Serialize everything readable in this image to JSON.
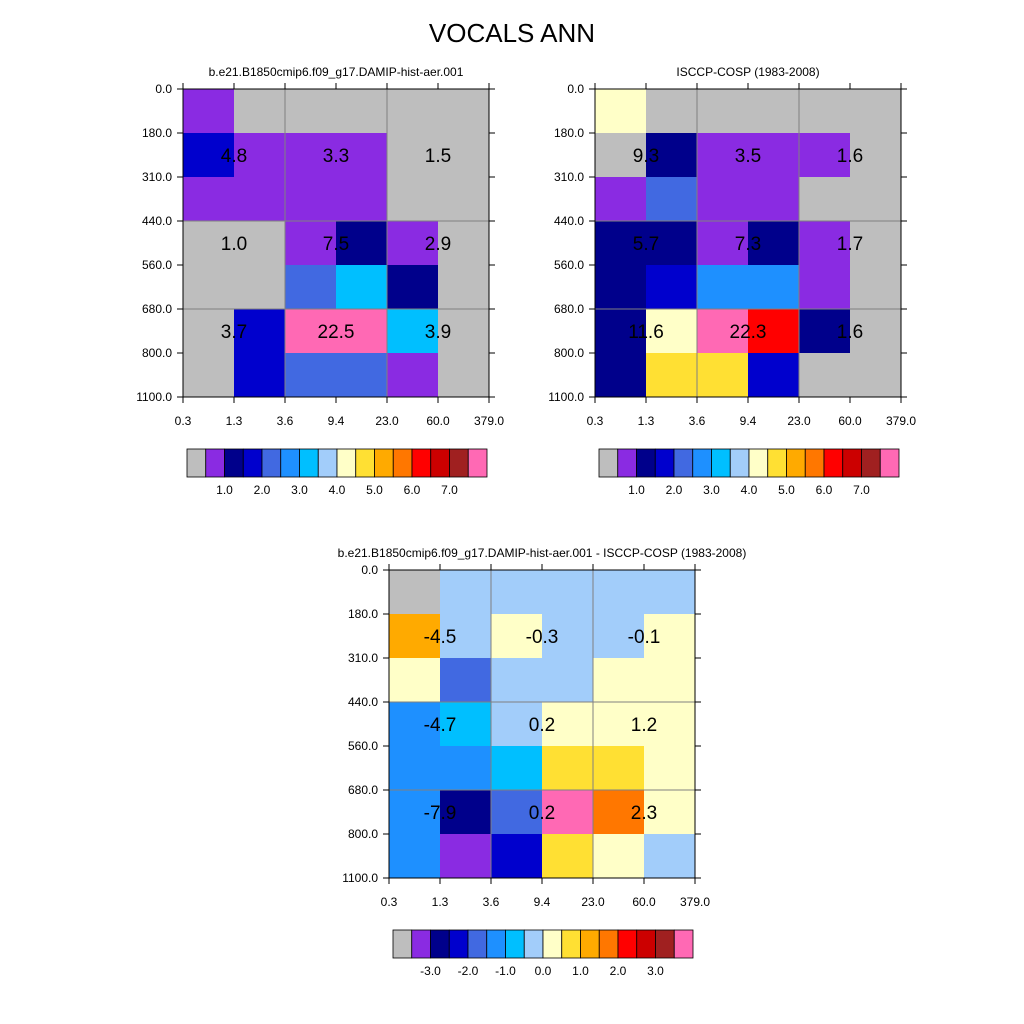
{
  "title": "VOCALS ANN",
  "colors": {
    "missing": "#BEBEBE",
    "grid": "#808080",
    "frame": "#000000"
  },
  "chart_data": [
    {
      "id": "model",
      "type": "heatmap",
      "subtitle": "b.e21.B1850cmip6.f09_g17.DAMIP-hist-aer.001",
      "x_ticks": [
        "0.3",
        "1.3",
        "3.6",
        "9.4",
        "23.0",
        "60.0",
        "379.0"
      ],
      "y_ticks": [
        "0.0",
        "180.0",
        "310.0",
        "440.0",
        "560.0",
        "680.0",
        "800.0",
        "1100.0"
      ],
      "cell_colors": [
        [
          "#8A2BE2",
          "#BEBEBE",
          "#BEBEBE",
          "#BEBEBE",
          "#BEBEBE",
          "#BEBEBE"
        ],
        [
          "#0000CD",
          "#8A2BE2",
          "#8A2BE2",
          "#8A2BE2",
          "#BEBEBE",
          "#BEBEBE"
        ],
        [
          "#8A2BE2",
          "#8A2BE2",
          "#8A2BE2",
          "#8A2BE2",
          "#BEBEBE",
          "#BEBEBE"
        ],
        [
          "#BEBEBE",
          "#BEBEBE",
          "#8A2BE2",
          "#00008B",
          "#8A2BE2",
          "#BEBEBE"
        ],
        [
          "#BEBEBE",
          "#BEBEBE",
          "#4169E1",
          "#00BFFF",
          "#00008B",
          "#BEBEBE"
        ],
        [
          "#BEBEBE",
          "#0000CD",
          "#FF69B4",
          "#FF69B4",
          "#00BFFF",
          "#BEBEBE"
        ],
        [
          "#BEBEBE",
          "#0000CD",
          "#4169E1",
          "#4169E1",
          "#8A2BE2",
          "#BEBEBE"
        ]
      ],
      "block_values": [
        [
          "4.8",
          "3.3",
          "1.5"
        ],
        [
          "1.0",
          "7.5",
          "2.9"
        ],
        [
          "3.7",
          "22.5",
          "3.9"
        ]
      ],
      "colorbar": {
        "colors": [
          "#BEBEBE",
          "#8A2BE2",
          "#00008B",
          "#0000CD",
          "#4169E1",
          "#1E90FF",
          "#00BFFF",
          "#A2CDFA",
          "#FFFFC8",
          "#FFE033",
          "#FFAA00",
          "#FF7700",
          "#FF0000",
          "#CC0000",
          "#A02020",
          "#FF69B4"
        ],
        "labels": [
          "1.0",
          "2.0",
          "3.0",
          "4.0",
          "5.0",
          "6.0",
          "7.0"
        ]
      }
    },
    {
      "id": "obs",
      "type": "heatmap",
      "subtitle": "ISCCP-COSP (1983-2008)",
      "x_ticks": [
        "0.3",
        "1.3",
        "3.6",
        "9.4",
        "23.0",
        "60.0",
        "379.0"
      ],
      "y_ticks": [
        "0.0",
        "180.0",
        "310.0",
        "440.0",
        "560.0",
        "680.0",
        "800.0",
        "1100.0"
      ],
      "cell_colors": [
        [
          "#FFFFC8",
          "#BEBEBE",
          "#BEBEBE",
          "#BEBEBE",
          "#BEBEBE",
          "#BEBEBE"
        ],
        [
          "#BEBEBE",
          "#00008B",
          "#8A2BE2",
          "#8A2BE2",
          "#8A2BE2",
          "#BEBEBE"
        ],
        [
          "#8A2BE2",
          "#4169E1",
          "#8A2BE2",
          "#8A2BE2",
          "#BEBEBE",
          "#BEBEBE"
        ],
        [
          "#00008B",
          "#00008B",
          "#8A2BE2",
          "#00008B",
          "#8A2BE2",
          "#BEBEBE"
        ],
        [
          "#00008B",
          "#0000CD",
          "#1E90FF",
          "#1E90FF",
          "#8A2BE2",
          "#BEBEBE"
        ],
        [
          "#00008B",
          "#FFFFC8",
          "#FF69B4",
          "#FF0000",
          "#00008B",
          "#BEBEBE"
        ],
        [
          "#00008B",
          "#FFE033",
          "#FFE033",
          "#0000CD",
          "#BEBEBE",
          "#BEBEBE"
        ]
      ],
      "block_values": [
        [
          "9.3",
          "3.5",
          "1.6"
        ],
        [
          "5.7",
          "7.3",
          "1.7"
        ],
        [
          "11.6",
          "22.3",
          "1.6"
        ]
      ],
      "colorbar": {
        "colors": [
          "#BEBEBE",
          "#8A2BE2",
          "#00008B",
          "#0000CD",
          "#4169E1",
          "#1E90FF",
          "#00BFFF",
          "#A2CDFA",
          "#FFFFC8",
          "#FFE033",
          "#FFAA00",
          "#FF7700",
          "#FF0000",
          "#CC0000",
          "#A02020",
          "#FF69B4"
        ],
        "labels": [
          "1.0",
          "2.0",
          "3.0",
          "4.0",
          "5.0",
          "6.0",
          "7.0"
        ]
      }
    },
    {
      "id": "diff",
      "type": "heatmap",
      "subtitle": "b.e21.B1850cmip6.f09_g17.DAMIP-hist-aer.001 - ISCCP-COSP (1983-2008)",
      "x_ticks": [
        "0.3",
        "1.3",
        "3.6",
        "9.4",
        "23.0",
        "60.0",
        "379.0"
      ],
      "y_ticks": [
        "0.0",
        "180.0",
        "310.0",
        "440.0",
        "560.0",
        "680.0",
        "800.0",
        "1100.0"
      ],
      "cell_colors": [
        [
          "#BEBEBE",
          "#A2CDFA",
          "#A2CDFA",
          "#A2CDFA",
          "#A2CDFA",
          "#A2CDFA"
        ],
        [
          "#FFAA00",
          "#A2CDFA",
          "#FFFFC8",
          "#A2CDFA",
          "#A2CDFA",
          "#FFFFC8"
        ],
        [
          "#FFFFC8",
          "#4169E1",
          "#A2CDFA",
          "#A2CDFA",
          "#FFFFC8",
          "#FFFFC8"
        ],
        [
          "#1E90FF",
          "#00BFFF",
          "#A2CDFA",
          "#FFFFC8",
          "#FFFFC8",
          "#FFFFC8"
        ],
        [
          "#1E90FF",
          "#1E90FF",
          "#00BFFF",
          "#FFE033",
          "#FFE033",
          "#FFFFC8"
        ],
        [
          "#1E90FF",
          "#00008B",
          "#4169E1",
          "#FF69B4",
          "#FF7700",
          "#FFFFC8"
        ],
        [
          "#1E90FF",
          "#8A2BE2",
          "#0000CD",
          "#FFE033",
          "#FFFFC8",
          "#A2CDFA"
        ]
      ],
      "block_values": [
        [
          "-4.5",
          "-0.3",
          "-0.1"
        ],
        [
          "-4.7",
          "0.2",
          "1.2"
        ],
        [
          "-7.9",
          "0.2",
          "2.3"
        ]
      ],
      "colorbar": {
        "colors": [
          "#BEBEBE",
          "#8A2BE2",
          "#00008B",
          "#0000CD",
          "#4169E1",
          "#1E90FF",
          "#00BFFF",
          "#A2CDFA",
          "#FFFFC8",
          "#FFE033",
          "#FFAA00",
          "#FF7700",
          "#FF0000",
          "#CC0000",
          "#A02020",
          "#FF69B4"
        ],
        "labels": [
          "-3.0",
          "-2.0",
          "-1.0",
          "0.0",
          "1.0",
          "2.0",
          "3.0"
        ]
      }
    }
  ]
}
